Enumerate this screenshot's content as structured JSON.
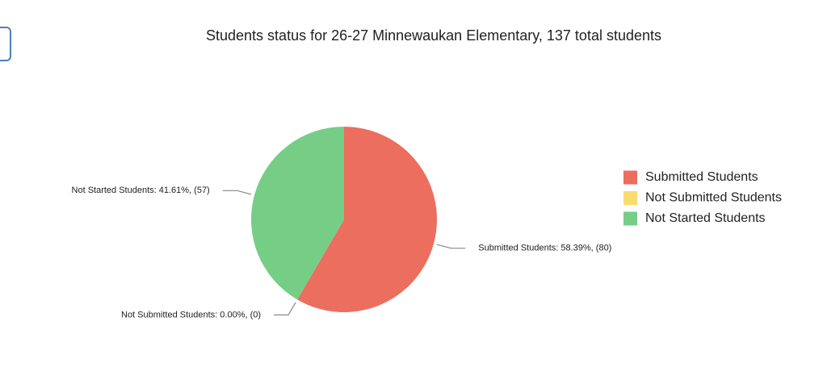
{
  "chart_data": {
    "type": "pie",
    "title": "Students status for 26-27 Minnewaukan Elementary, 137 total students",
    "categories": [
      "Submitted Students",
      "Not Submitted Students",
      "Not Started Students"
    ],
    "values": [
      80,
      0,
      57
    ],
    "value_labels": [
      "Submitted Students: 58.39%, (80)",
      "Not Submitted Students: 0.00%, (0)",
      "Not Started Students: 41.61%, (57)"
    ],
    "colors": [
      "#ec6e5e",
      "#f7dc6f",
      "#76ce86"
    ],
    "legend": "right"
  }
}
